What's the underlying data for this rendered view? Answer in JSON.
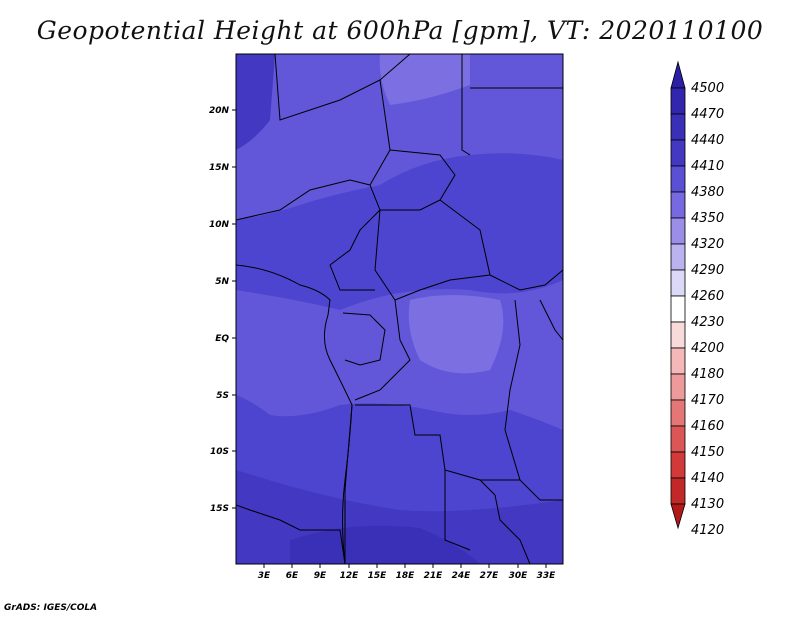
{
  "title": "Geopotential Height at 600hPa [gpm], VT: 2020110100",
  "credit": "GrADS: IGES/COLA",
  "map": {
    "lat_labels": [
      "20N",
      "15N",
      "10N",
      "5N",
      "EQ",
      "5S",
      "10S",
      "15S"
    ],
    "lon_labels": [
      "3E",
      "6E",
      "9E",
      "12E",
      "15E",
      "18E",
      "21E",
      "24E",
      "27E",
      "30E",
      "33E"
    ]
  },
  "legend": {
    "levels": [
      "4500",
      "4470",
      "4440",
      "4410",
      "4380",
      "4350",
      "4320",
      "4290",
      "4260",
      "4230",
      "4200",
      "4180",
      "4170",
      "4160",
      "4150",
      "4140",
      "4130",
      "4120"
    ],
    "colors": [
      "#2d1ea6",
      "#3226ae",
      "#3a30b8",
      "#4238c2",
      "#5a50d6",
      "#7669e2",
      "#9a8ee8",
      "#bbb2f0",
      "#dcd8f8",
      "#ffffff",
      "#f8dada",
      "#f4b8b8",
      "#ec9a9a",
      "#e47676",
      "#dc5656",
      "#d23a3a",
      "#c22828",
      "#b21a1a"
    ]
  }
}
